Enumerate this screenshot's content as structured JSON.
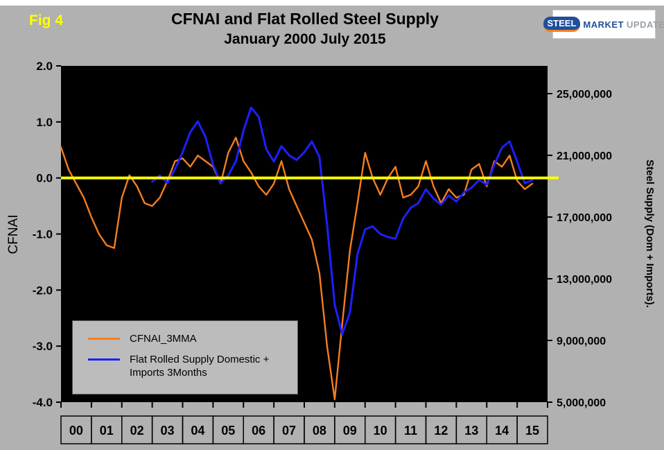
{
  "figure": {
    "fig_label": "Fig 4",
    "title_line1": "CFNAI and Flat Rolled Steel Supply",
    "title_line2": "January 2000 July 2015"
  },
  "logo": {
    "steel": "STEEL",
    "market": "MARKET",
    "update": "UPDATE"
  },
  "axis_titles": {
    "left": "CFNAI",
    "right": "Steel Supply (Dom + Imports)."
  },
  "legend": {
    "items": [
      {
        "label": "CFNAI_3MMA"
      },
      {
        "label": "Flat Rolled Supply Domestic + Imports 3Months"
      }
    ]
  },
  "chart_data": {
    "type": "line",
    "title": "CFNAI and Flat Rolled Steel Supply",
    "subtitle": "January 2000 July 2015",
    "legend_position": "inside-bottom-left",
    "grid": false,
    "colors": {
      "plot_bg": "#000000",
      "zero_line": "#ffff00",
      "background": "#b1b1b1",
      "cfnai": "#f57e20",
      "supply": "#1f1fff"
    },
    "zero_line_value": 0,
    "axes": {
      "x": {
        "ticks": [
          "00",
          "01",
          "02",
          "03",
          "04",
          "05",
          "06",
          "07",
          "08",
          "09",
          "10",
          "11",
          "12",
          "13",
          "14",
          "15"
        ],
        "range": [
          2000,
          2016
        ]
      },
      "left": {
        "label": "CFNAI",
        "ticks": [
          "2.0",
          "1.0",
          "0.0",
          "-1.0",
          "-2.0",
          "-3.0",
          "-4.0"
        ],
        "range": [
          -4,
          2
        ]
      },
      "right": {
        "label": "Steel Supply (Dom + Imports).",
        "ticks": [
          "25,000,000",
          "21,000,000",
          "17,000,000",
          "13,000,000",
          "9,000,000",
          "5,000,000"
        ],
        "range": [
          5000000,
          26800000
        ]
      }
    },
    "series": [
      {
        "name": "CFNAI_3MMA",
        "axis": "left",
        "color": "#f57e20",
        "width": 2.4,
        "x": [
          2000,
          2000.25,
          2000.5,
          2000.75,
          2001,
          2001.25,
          2001.5,
          2001.75,
          2002,
          2002.25,
          2002.5,
          2002.75,
          2003,
          2003.25,
          2003.5,
          2003.75,
          2004,
          2004.25,
          2004.5,
          2004.75,
          2005,
          2005.25,
          2005.5,
          2005.75,
          2006,
          2006.25,
          2006.5,
          2006.75,
          2007,
          2007.25,
          2007.5,
          2007.75,
          2008,
          2008.25,
          2008.5,
          2008.75,
          2009,
          2009.25,
          2009.5,
          2009.75,
          2010,
          2010.25,
          2010.5,
          2010.75,
          2011,
          2011.25,
          2011.5,
          2011.75,
          2012,
          2012.25,
          2012.5,
          2012.75,
          2013,
          2013.25,
          2013.5,
          2013.75,
          2014,
          2014.25,
          2014.5,
          2014.75,
          2015,
          2015.25,
          2015.5
        ],
        "y": [
          0.55,
          0.15,
          -0.1,
          -0.35,
          -0.7,
          -1.0,
          -1.2,
          -1.25,
          -0.35,
          0.05,
          -0.15,
          -0.45,
          -0.5,
          -0.35,
          -0.05,
          0.3,
          0.35,
          0.2,
          0.4,
          0.3,
          0.2,
          -0.1,
          0.45,
          0.72,
          0.3,
          0.1,
          -0.15,
          -0.3,
          -0.1,
          0.3,
          -0.2,
          -0.5,
          -0.8,
          -1.1,
          -1.7,
          -3.0,
          -3.95,
          -2.6,
          -1.3,
          -0.45,
          0.45,
          0.0,
          -0.3,
          0.0,
          0.2,
          -0.35,
          -0.3,
          -0.15,
          0.3,
          -0.15,
          -0.45,
          -0.2,
          -0.35,
          -0.3,
          0.15,
          0.25,
          -0.15,
          0.3,
          0.2,
          0.4,
          -0.05,
          -0.2,
          -0.1
        ]
      },
      {
        "name": "Flat Rolled Supply Domestic + Imports 3Months",
        "axis": "right",
        "color": "#1f1fff",
        "width": 3,
        "x": [
          2003,
          2003.25,
          2003.5,
          2003.75,
          2004,
          2004.25,
          2004.5,
          2004.75,
          2005,
          2005.25,
          2005.5,
          2005.75,
          2006,
          2006.25,
          2006.5,
          2006.75,
          2007,
          2007.25,
          2007.5,
          2007.75,
          2008,
          2008.25,
          2008.5,
          2008.75,
          2009,
          2009.25,
          2009.5,
          2009.75,
          2010,
          2010.25,
          2010.5,
          2010.75,
          2011,
          2011.25,
          2011.5,
          2011.75,
          2012,
          2012.25,
          2012.5,
          2012.75,
          2013,
          2013.25,
          2013.5,
          2013.75,
          2014,
          2014.25,
          2014.5,
          2014.75,
          2015,
          2015.25,
          2015.5
        ],
        "y": [
          19300000,
          19700000,
          19200000,
          20100000,
          21200000,
          22500000,
          23200000,
          22200000,
          20400000,
          19200000,
          19700000,
          20600000,
          22600000,
          24100000,
          23500000,
          21400000,
          20600000,
          21600000,
          21000000,
          20700000,
          21200000,
          21900000,
          20900000,
          16500000,
          11300000,
          9400000,
          10800000,
          14600000,
          16200000,
          16400000,
          15900000,
          15700000,
          15600000,
          16900000,
          17600000,
          17900000,
          18800000,
          18200000,
          17800000,
          18400000,
          18000000,
          18600000,
          18900000,
          19400000,
          19100000,
          20400000,
          21500000,
          21900000,
          20600000,
          19200000,
          19400000
        ]
      }
    ]
  }
}
